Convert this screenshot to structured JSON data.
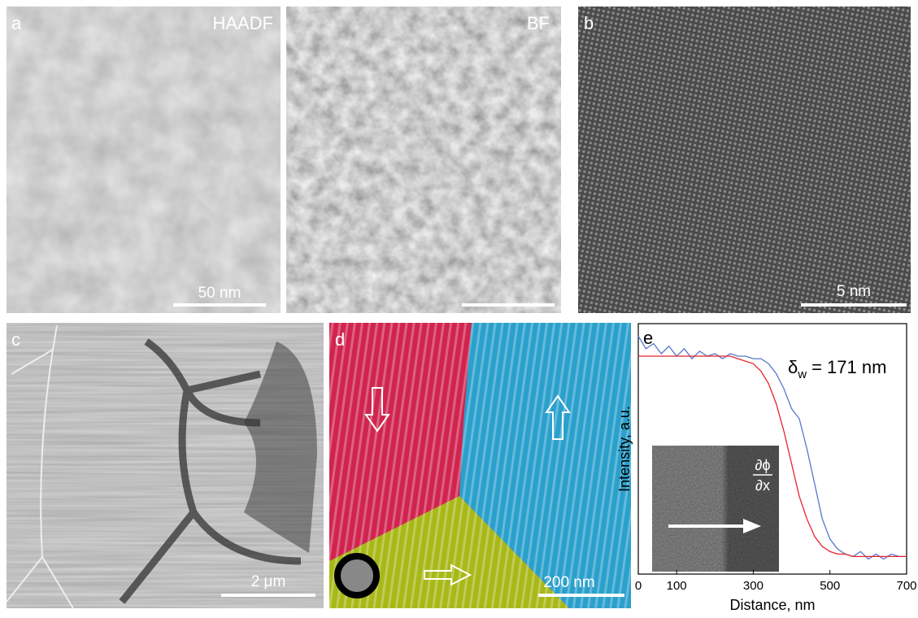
{
  "panels": {
    "a": {
      "label": "a",
      "left_title": "HAADF",
      "right_title": "BF",
      "scale_bar": "50 nm"
    },
    "b": {
      "label": "b",
      "scale_bar": "5 nm"
    },
    "c": {
      "label": "c",
      "scale_bar": "2 μm"
    },
    "d": {
      "label": "d",
      "scale_bar": "200 nm"
    },
    "e": {
      "label": "e"
    }
  },
  "chart_data": {
    "type": "line",
    "x_label": "Distance, nm",
    "y_label": "Intensity, a.u.",
    "annotation": {
      "symbol": "δ",
      "subscript": "w",
      "text": "= 171 nm"
    },
    "inset_label": {
      "numerator": "∂ϕ",
      "denominator": "∂x"
    },
    "x": [
      0,
      20,
      40,
      60,
      80,
      100,
      120,
      140,
      160,
      180,
      200,
      220,
      240,
      260,
      280,
      300,
      320,
      340,
      360,
      380,
      400,
      420,
      440,
      460,
      480,
      500,
      520,
      540,
      560,
      580,
      600,
      620,
      640,
      660,
      680,
      700
    ],
    "series": [
      {
        "color": "#5577cc",
        "values": [
          0.95,
          0.9,
          0.92,
          0.88,
          0.91,
          0.87,
          0.9,
          0.86,
          0.89,
          0.87,
          0.88,
          0.86,
          0.88,
          0.87,
          0.87,
          0.86,
          0.86,
          0.84,
          0.8,
          0.74,
          0.66,
          0.62,
          0.5,
          0.36,
          0.22,
          0.14,
          0.1,
          0.08,
          0.07,
          0.09,
          0.06,
          0.08,
          0.06,
          0.08,
          0.07,
          0.07
        ]
      },
      {
        "color": "#e8232a",
        "values": [
          0.87,
          0.87,
          0.87,
          0.87,
          0.87,
          0.87,
          0.87,
          0.87,
          0.87,
          0.87,
          0.87,
          0.87,
          0.87,
          0.86,
          0.85,
          0.84,
          0.81,
          0.76,
          0.68,
          0.57,
          0.44,
          0.31,
          0.22,
          0.15,
          0.11,
          0.09,
          0.08,
          0.08,
          0.07,
          0.07,
          0.07,
          0.07,
          0.07,
          0.07,
          0.07,
          0.07
        ]
      }
    ],
    "xlim": [
      0,
      700
    ],
    "ylim": [
      0,
      1
    ],
    "xticks": [
      0,
      100,
      300,
      500,
      700
    ]
  }
}
